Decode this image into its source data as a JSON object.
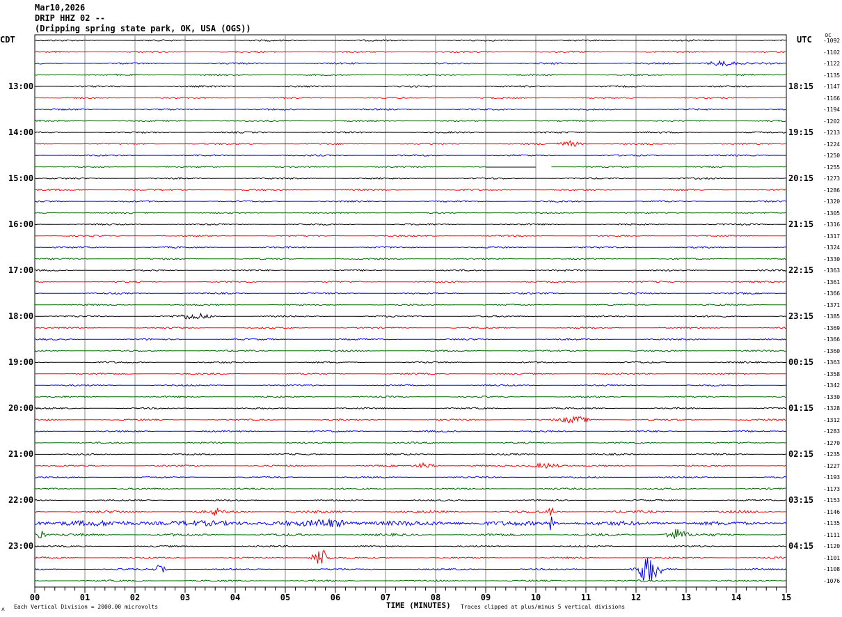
{
  "header": {
    "date": "Mar10,2026",
    "station": "DRIP HHZ 02 --",
    "location": "(Dripping spring state park, OK, USA (OGS))"
  },
  "left_tz": "CDT",
  "right_tz": "UTC",
  "dc_label": "DC",
  "left_labels": [
    "13:00",
    "14:00",
    "15:00",
    "16:00",
    "17:00",
    "18:00",
    "19:00",
    "20:00",
    "21:00",
    "22:00",
    "23:00"
  ],
  "right_labels": [
    "18:15",
    "19:15",
    "20:15",
    "21:15",
    "22:15",
    "23:15",
    "00:15",
    "01:15",
    "02:15",
    "03:15",
    "04:15"
  ],
  "dc_offsets": [
    "-1092",
    "-1102",
    "-1122",
    "-1135",
    "-1147",
    "-1166",
    "-1194",
    "-1202",
    "-1213",
    "-1224",
    "-1250",
    "-1255",
    "-1273",
    "-1286",
    "-1320",
    "-1305",
    "-1316",
    "-1317",
    "-1324",
    "-1330",
    "-1363",
    "-1361",
    "-1366",
    "-1371",
    "-1385",
    "-1369",
    "-1366",
    "-1360",
    "-1363",
    "-1358",
    "-1342",
    "-1330",
    "-1328",
    "-1312",
    "-1283",
    "-1270",
    "-1235",
    "-1227",
    "-1193",
    "-1173",
    "-1153",
    "-1146",
    "-1135",
    "-1111",
    "-1120",
    "-1101",
    "-1108",
    "-1076"
  ],
  "footer": {
    "scale_note": "Each Vertical Division = 2000.00 microvolts",
    "xlabel": "TIME (MINUTES)",
    "clip_note": "Traces clipped at plus/minus 5 vertical divisions"
  },
  "chart_data": {
    "type": "line",
    "title": "DRIP HHZ 02 -- Mar10,2026",
    "xlabel": "TIME (MINUTES)",
    "x_ticks": [
      "00",
      "01",
      "02",
      "03",
      "04",
      "05",
      "06",
      "07",
      "08",
      "09",
      "10",
      "11",
      "12",
      "13",
      "14",
      "15"
    ],
    "xlim": [
      0,
      15
    ],
    "trace_count": 48,
    "trace_minutes": 15,
    "trace_colors": [
      "#000000",
      "#ff0000",
      "#0000ff",
      "#006400"
    ],
    "grid": true
  }
}
